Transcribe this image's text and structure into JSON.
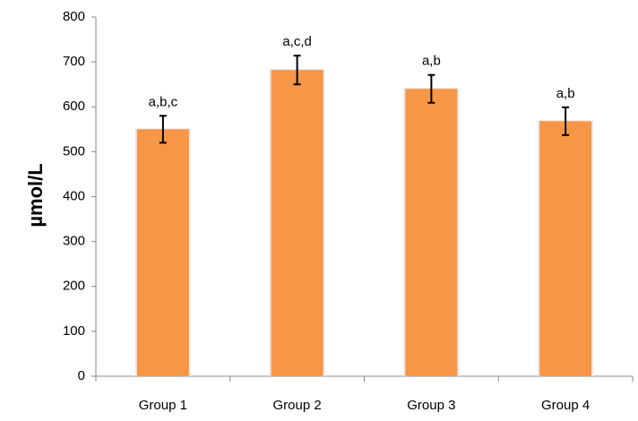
{
  "chart_data": {
    "type": "bar",
    "title": "",
    "xlabel": "",
    "ylabel": "µmol/L",
    "ylim": [
      0,
      800
    ],
    "yticks": [
      0,
      100,
      200,
      300,
      400,
      500,
      600,
      700,
      800
    ],
    "grid": false,
    "categories": [
      "Group 1",
      "Group 2",
      "Group 3",
      "Group 4"
    ],
    "series": [
      {
        "values": [
          550,
          682,
          640,
          568
        ],
        "errors": [
          30,
          32,
          31,
          31
        ],
        "annotations": [
          "a,b,c",
          "a,c,d",
          "a,b",
          "a,b"
        ],
        "color": "#F79646"
      }
    ]
  }
}
